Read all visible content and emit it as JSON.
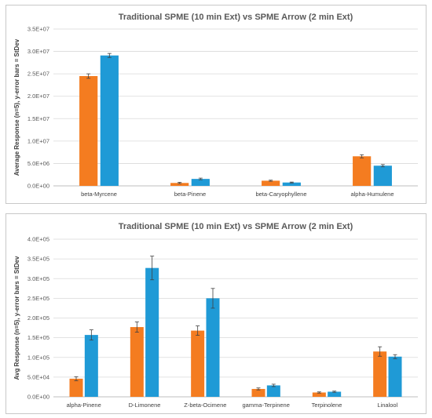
{
  "colors": {
    "series1": "#F47C20",
    "series2": "#1F9AD6",
    "gridline": "#D9D9D9",
    "axis": "#BFBFBF",
    "errorbar": "#404040"
  },
  "chart_data": [
    {
      "type": "bar",
      "title": "Traditional  SPME (10 min Ext) vs  SPME Arrow (2 min Ext)",
      "ylabel": "Average Response (n=5), y-error bars = StDev",
      "xlabel": "",
      "categories": [
        "beta-Myrcene",
        "beta-Pinene",
        "beta-Caryophyllene",
        "alpha-Humulene"
      ],
      "ylim": [
        0,
        35000000
      ],
      "yticks": [
        0,
        5000000,
        10000000,
        15000000,
        20000000,
        25000000,
        30000000,
        35000000
      ],
      "ytick_labels": [
        "0.0E+00",
        "5.0E+06",
        "1.0E+07",
        "1.5E+07",
        "2.0E+07",
        "2.5E+07",
        "3.0E+07",
        "3.5E+07"
      ],
      "grid": true,
      "legend": "none",
      "series": [
        {
          "values": [
            24500000,
            650000,
            1150000,
            6600000
          ],
          "errors": [
            500000,
            150000,
            120000,
            350000
          ]
        },
        {
          "values": [
            29100000,
            1550000,
            750000,
            4500000
          ],
          "errors": [
            450000,
            180000,
            100000,
            250000
          ]
        }
      ]
    },
    {
      "type": "bar",
      "title": "Traditional  SPME (10 min Ext) vs  SPME Arrow (2 min Ext)",
      "ylabel": "Avg Response (n=5), y-error bars = StDev",
      "xlabel": "",
      "categories": [
        "alpha-Pinene",
        "D-Limonene",
        "Z-beta-Ocimene",
        "gamma-Terpinene",
        "Terpinolene",
        "Linalool"
      ],
      "ylim": [
        0,
        400000
      ],
      "yticks": [
        0,
        50000,
        100000,
        150000,
        200000,
        250000,
        300000,
        350000,
        400000
      ],
      "ytick_labels": [
        "0.0E+00",
        "5.0E+04",
        "1.0E+05",
        "1.5E+05",
        "2.0E+05",
        "2.5E+05",
        "3.0E+05",
        "3.5E+05",
        "4.0E+05"
      ],
      "grid": true,
      "legend": "none",
      "series": [
        {
          "values": [
            46000,
            177000,
            168000,
            20000,
            11000,
            115000
          ],
          "errors": [
            5000,
            13000,
            12000,
            2500,
            1500,
            12000
          ]
        },
        {
          "values": [
            157000,
            327000,
            250000,
            29000,
            13000,
            102000
          ],
          "errors": [
            13000,
            30000,
            25000,
            3000,
            1500,
            5000
          ]
        }
      ]
    }
  ]
}
